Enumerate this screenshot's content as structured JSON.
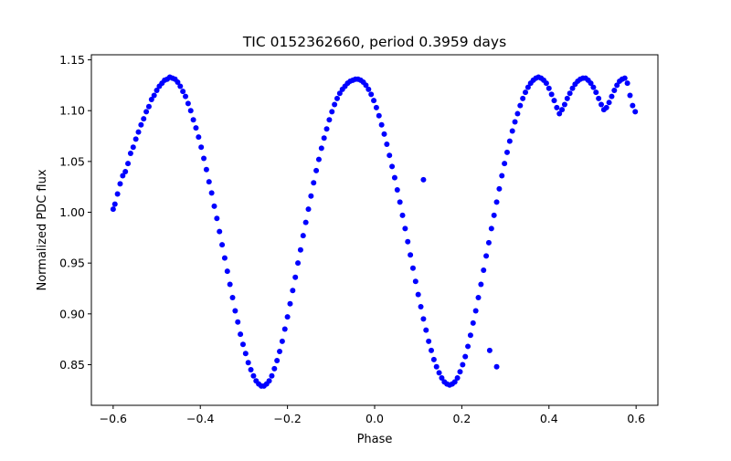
{
  "chart_data": {
    "type": "scatter",
    "title": "TIC 0152362660, period 0.3959 days",
    "xlabel": "Phase",
    "ylabel": "Normalized PDC flux",
    "xlim": [
      -0.65,
      0.65
    ],
    "ylim": [
      0.81,
      1.155
    ],
    "xticks": [
      -0.6,
      -0.4,
      -0.2,
      0.0,
      0.2,
      0.4,
      0.6
    ],
    "xtick_labels": [
      "−0.6",
      "−0.4",
      "−0.2",
      "0.0",
      "0.2",
      "0.4",
      "0.6"
    ],
    "yticks": [
      0.85,
      0.9,
      0.95,
      1.0,
      1.05,
      1.1,
      1.15
    ],
    "ytick_labels": [
      "0.85",
      "0.90",
      "0.95",
      "1.00",
      "1.05",
      "1.10",
      "1.15"
    ],
    "grid": false,
    "legend": "none",
    "marker_color": "#0000ff",
    "series": [
      {
        "points": [
          [
            -0.6,
            1.003
          ],
          [
            -0.596,
            1.008
          ],
          [
            -0.59,
            1.018
          ],
          [
            -0.584,
            1.028
          ],
          [
            -0.578,
            1.036
          ],
          [
            -0.572,
            1.04
          ],
          [
            -0.566,
            1.048
          ],
          [
            -0.56,
            1.058
          ],
          [
            -0.554,
            1.064
          ],
          [
            -0.548,
            1.072
          ],
          [
            -0.542,
            1.079
          ],
          [
            -0.536,
            1.086
          ],
          [
            -0.53,
            1.092
          ],
          [
            -0.524,
            1.099
          ],
          [
            -0.518,
            1.104
          ],
          [
            -0.512,
            1.111
          ],
          [
            -0.506,
            1.115
          ],
          [
            -0.5,
            1.12
          ],
          [
            -0.494,
            1.124
          ],
          [
            -0.488,
            1.127
          ],
          [
            -0.482,
            1.13
          ],
          [
            -0.476,
            1.131
          ],
          [
            -0.47,
            1.133
          ],
          [
            -0.464,
            1.132
          ],
          [
            -0.458,
            1.131
          ],
          [
            -0.452,
            1.128
          ],
          [
            -0.446,
            1.124
          ],
          [
            -0.44,
            1.119
          ],
          [
            -0.434,
            1.114
          ],
          [
            -0.428,
            1.107
          ],
          [
            -0.422,
            1.1
          ],
          [
            -0.416,
            1.091
          ],
          [
            -0.41,
            1.083
          ],
          [
            -0.404,
            1.074
          ],
          [
            -0.398,
            1.064
          ],
          [
            -0.392,
            1.053
          ],
          [
            -0.386,
            1.042
          ],
          [
            -0.38,
            1.03
          ],
          [
            -0.374,
            1.019
          ],
          [
            -0.368,
            1.006
          ],
          [
            -0.362,
            0.994
          ],
          [
            -0.356,
            0.981
          ],
          [
            -0.35,
            0.968
          ],
          [
            -0.344,
            0.955
          ],
          [
            -0.338,
            0.942
          ],
          [
            -0.332,
            0.929
          ],
          [
            -0.326,
            0.916
          ],
          [
            -0.32,
            0.903
          ],
          [
            -0.314,
            0.892
          ],
          [
            -0.308,
            0.88
          ],
          [
            -0.302,
            0.87
          ],
          [
            -0.296,
            0.861
          ],
          [
            -0.29,
            0.852
          ],
          [
            -0.284,
            0.845
          ],
          [
            -0.278,
            0.839
          ],
          [
            -0.272,
            0.834
          ],
          [
            -0.266,
            0.831
          ],
          [
            -0.26,
            0.829
          ],
          [
            -0.254,
            0.829
          ],
          [
            -0.248,
            0.831
          ],
          [
            -0.242,
            0.834
          ],
          [
            -0.236,
            0.839
          ],
          [
            -0.23,
            0.846
          ],
          [
            -0.224,
            0.854
          ],
          [
            -0.218,
            0.863
          ],
          [
            -0.212,
            0.873
          ],
          [
            -0.206,
            0.885
          ],
          [
            -0.2,
            0.897
          ],
          [
            -0.194,
            0.91
          ],
          [
            -0.188,
            0.923
          ],
          [
            -0.182,
            0.936
          ],
          [
            -0.176,
            0.95
          ],
          [
            -0.17,
            0.963
          ],
          [
            -0.164,
            0.977
          ],
          [
            -0.158,
            0.99
          ],
          [
            -0.152,
            1.003
          ],
          [
            -0.146,
            1.016
          ],
          [
            -0.14,
            1.029
          ],
          [
            -0.134,
            1.041
          ],
          [
            -0.128,
            1.052
          ],
          [
            -0.122,
            1.063
          ],
          [
            -0.116,
            1.073
          ],
          [
            -0.11,
            1.082
          ],
          [
            -0.104,
            1.091
          ],
          [
            -0.098,
            1.099
          ],
          [
            -0.092,
            1.106
          ],
          [
            -0.086,
            1.112
          ],
          [
            -0.08,
            1.117
          ],
          [
            -0.074,
            1.121
          ],
          [
            -0.068,
            1.124
          ],
          [
            -0.062,
            1.127
          ],
          [
            -0.056,
            1.129
          ],
          [
            -0.05,
            1.13
          ],
          [
            -0.044,
            1.131
          ],
          [
            -0.038,
            1.131
          ],
          [
            -0.032,
            1.13
          ],
          [
            -0.026,
            1.128
          ],
          [
            -0.02,
            1.125
          ],
          [
            -0.014,
            1.121
          ],
          [
            -0.008,
            1.116
          ],
          [
            -0.002,
            1.11
          ],
          [
            0.004,
            1.103
          ],
          [
            0.01,
            1.095
          ],
          [
            0.016,
            1.086
          ],
          [
            0.022,
            1.077
          ],
          [
            0.028,
            1.067
          ],
          [
            0.034,
            1.056
          ],
          [
            0.04,
            1.045
          ],
          [
            0.046,
            1.034
          ],
          [
            0.052,
            1.022
          ],
          [
            0.058,
            1.01
          ],
          [
            0.064,
            0.997
          ],
          [
            0.07,
            0.984
          ],
          [
            0.076,
            0.971
          ],
          [
            0.082,
            0.958
          ],
          [
            0.088,
            0.945
          ],
          [
            0.094,
            0.932
          ],
          [
            0.1,
            0.919
          ],
          [
            0.106,
            0.907
          ],
          [
            0.112,
            0.895
          ],
          [
            0.118,
            0.884
          ],
          [
            0.124,
            0.873
          ],
          [
            0.13,
            0.864
          ],
          [
            0.136,
            0.855
          ],
          [
            0.142,
            0.848
          ],
          [
            0.148,
            0.842
          ],
          [
            0.154,
            0.837
          ],
          [
            0.16,
            0.833
          ],
          [
            0.166,
            0.831
          ],
          [
            0.172,
            0.83
          ],
          [
            0.178,
            0.831
          ],
          [
            0.184,
            0.833
          ],
          [
            0.19,
            0.837
          ],
          [
            0.196,
            0.843
          ],
          [
            0.202,
            0.85
          ],
          [
            0.208,
            0.858
          ],
          [
            0.214,
            0.868
          ],
          [
            0.22,
            0.879
          ],
          [
            0.226,
            0.891
          ],
          [
            0.232,
            0.903
          ],
          [
            0.238,
            0.916
          ],
          [
            0.244,
            0.929
          ],
          [
            0.25,
            0.943
          ],
          [
            0.256,
            0.957
          ],
          [
            0.262,
            0.97
          ],
          [
            0.268,
            0.984
          ],
          [
            0.274,
            0.997
          ],
          [
            0.28,
            1.01
          ],
          [
            0.286,
            1.023
          ],
          [
            0.292,
            1.036
          ],
          [
            0.298,
            1.048
          ],
          [
            0.304,
            1.059
          ],
          [
            0.31,
            1.07
          ],
          [
            0.316,
            1.08
          ],
          [
            0.322,
            1.089
          ],
          [
            0.328,
            1.097
          ],
          [
            0.334,
            1.105
          ],
          [
            0.34,
            1.112
          ],
          [
            0.346,
            1.118
          ],
          [
            0.352,
            1.123
          ],
          [
            0.358,
            1.127
          ],
          [
            0.364,
            1.13
          ],
          [
            0.37,
            1.132
          ],
          [
            0.376,
            1.133
          ],
          [
            0.382,
            1.132
          ],
          [
            0.388,
            1.13
          ],
          [
            0.394,
            1.127
          ],
          [
            0.4,
            1.122
          ],
          [
            0.406,
            1.116
          ],
          [
            0.412,
            1.11
          ],
          [
            0.418,
            1.103
          ],
          [
            0.424,
            1.097
          ],
          [
            0.43,
            1.101
          ],
          [
            0.436,
            1.106
          ],
          [
            0.442,
            1.112
          ],
          [
            0.448,
            1.117
          ],
          [
            0.454,
            1.122
          ],
          [
            0.46,
            1.126
          ],
          [
            0.466,
            1.129
          ],
          [
            0.472,
            1.131
          ],
          [
            0.478,
            1.132
          ],
          [
            0.484,
            1.132
          ],
          [
            0.49,
            1.13
          ],
          [
            0.496,
            1.127
          ],
          [
            0.502,
            1.123
          ],
          [
            0.508,
            1.118
          ],
          [
            0.514,
            1.112
          ],
          [
            0.52,
            1.106
          ],
          [
            0.526,
            1.101
          ],
          [
            0.532,
            1.103
          ],
          [
            0.538,
            1.108
          ],
          [
            0.544,
            1.114
          ],
          [
            0.55,
            1.12
          ],
          [
            0.556,
            1.125
          ],
          [
            0.562,
            1.129
          ],
          [
            0.568,
            1.131
          ],
          [
            0.574,
            1.132
          ],
          [
            0.58,
            1.127
          ],
          [
            0.586,
            1.115
          ],
          [
            0.592,
            1.105
          ],
          [
            0.598,
            1.099
          ],
          [
            0.112,
            1.032
          ],
          [
            0.264,
            0.864
          ],
          [
            0.28,
            0.848
          ]
        ]
      }
    ]
  }
}
